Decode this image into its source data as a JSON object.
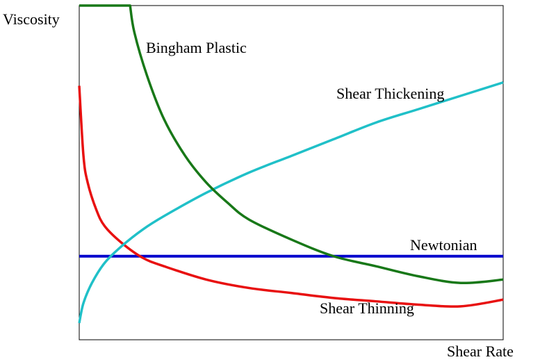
{
  "chart_data": {
    "type": "line",
    "xlabel": "Shear Rate",
    "ylabel": "Viscosity",
    "xlim": [
      0,
      1
    ],
    "ylim": [
      0,
      1
    ],
    "grid": false,
    "legend": "inline labels",
    "series": [
      {
        "name": "Newtonian",
        "color": "#0000cc",
        "x": [
          0.0,
          0.25,
          0.5,
          0.75,
          1.0
        ],
        "y": [
          0.25,
          0.25,
          0.25,
          0.25,
          0.25
        ]
      },
      {
        "name": "Shear Thinning",
        "color": "#e81010",
        "x": [
          0.0,
          0.01,
          0.02,
          0.04,
          0.06,
          0.1,
          0.15,
          0.2,
          0.3,
          0.4,
          0.5,
          0.6,
          0.7,
          0.8,
          0.9,
          1.0
        ],
        "y": [
          0.76,
          0.55,
          0.47,
          0.39,
          0.34,
          0.29,
          0.245,
          0.22,
          0.18,
          0.155,
          0.14,
          0.125,
          0.115,
          0.105,
          0.1,
          0.12
        ]
      },
      {
        "name": "Shear Thickening",
        "color": "#20c0c8",
        "x": [
          0.0,
          0.01,
          0.03,
          0.06,
          0.1,
          0.15,
          0.2,
          0.3,
          0.4,
          0.5,
          0.6,
          0.7,
          0.8,
          0.9,
          1.0
        ],
        "y": [
          0.05,
          0.11,
          0.17,
          0.23,
          0.28,
          0.33,
          0.37,
          0.44,
          0.5,
          0.55,
          0.6,
          0.65,
          0.69,
          0.73,
          0.77
        ]
      },
      {
        "name": "Bingham Plastic",
        "color": "#187818",
        "x": [
          0.0,
          0.12,
          0.13,
          0.16,
          0.2,
          0.25,
          0.3,
          0.35,
          0.4,
          0.5,
          0.6,
          0.7,
          0.8,
          0.9,
          1.0
        ],
        "y": [
          1.0,
          1.0,
          0.92,
          0.79,
          0.66,
          0.55,
          0.47,
          0.41,
          0.36,
          0.3,
          0.25,
          0.22,
          0.19,
          0.17,
          0.18
        ]
      }
    ]
  }
}
